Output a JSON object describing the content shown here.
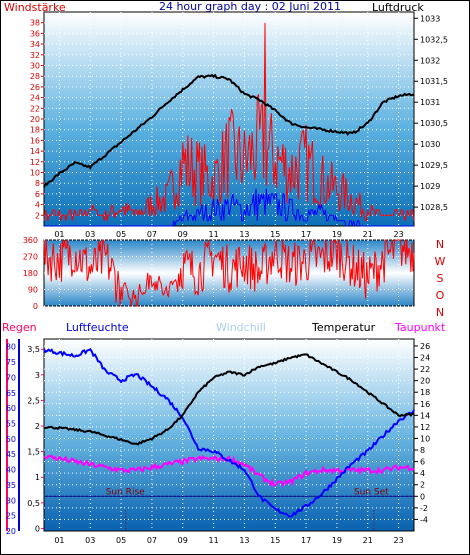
{
  "header": {
    "left": "Windstärke",
    "title": "24 hour graph day : 02 Juni 2011",
    "right": "Luftdruck"
  },
  "colors": {
    "wind": "#ff0000",
    "gust": "#0000ff",
    "pressure": "#000000",
    "temperature": "#000000",
    "humidity": "#0000ff",
    "dewpoint": "#ff00ff",
    "rain": "#ff0066",
    "windchill": "#aaccee",
    "sun": "#000080"
  },
  "wind_dir_letters": [
    "N",
    "W",
    "S",
    "O",
    "N"
  ],
  "bottom_legend": {
    "regen": "Regen",
    "luftfeuchte": "Luftfeuchte",
    "windchill": "Windchill",
    "temperatur": "Temperatur",
    "taupunkt": "Taupunkt"
  },
  "annotations": {
    "sun_rise": "Sun Rise",
    "sun_set": "Sun Set"
  },
  "chart_data": [
    {
      "type": "line",
      "name": "wind_pressure",
      "x_ticks": [
        "01",
        "03",
        "05",
        "07",
        "09",
        "11",
        "13",
        "15",
        "17",
        "19",
        "21",
        "23"
      ],
      "x_range_hours": [
        0,
        24
      ],
      "y_left": {
        "ticks": [
          2,
          4,
          6,
          8,
          10,
          12,
          14,
          16,
          18,
          20,
          22,
          24,
          26,
          28,
          30,
          32,
          34,
          36,
          38
        ],
        "range": [
          0,
          40
        ]
      },
      "y_right": {
        "ticks": [
          "1028,5",
          "1029",
          "1029,5",
          "1030",
          "1030,5",
          "1031",
          "1031,5",
          "1032",
          "1032,5",
          "1033"
        ],
        "range": [
          1028.05,
          1033.15
        ]
      },
      "pressure": {
        "hours": [
          0,
          1,
          2,
          3,
          4,
          5,
          6,
          7,
          8,
          9,
          10,
          11,
          12,
          13,
          14,
          15,
          16,
          17,
          18,
          19,
          20,
          21,
          22,
          23,
          24
        ],
        "values": [
          1029.0,
          1029.3,
          1029.55,
          1029.45,
          1029.75,
          1030.05,
          1030.35,
          1030.65,
          1031.0,
          1031.3,
          1031.6,
          1031.62,
          1031.55,
          1031.2,
          1031.05,
          1030.8,
          1030.5,
          1030.4,
          1030.35,
          1030.3,
          1030.25,
          1030.5,
          1031.0,
          1031.15,
          1031.2
        ]
      },
      "wind": {
        "hours": [
          0,
          1,
          2,
          3,
          4,
          5,
          6,
          7,
          8,
          9,
          10,
          11,
          12,
          13,
          14,
          15,
          16,
          17,
          18,
          19,
          20,
          21,
          22,
          23,
          24
        ],
        "values": [
          2,
          2,
          2,
          3,
          2,
          4,
          2,
          5,
          6,
          14,
          12,
          10,
          16,
          14,
          18,
          15,
          12,
          14,
          10,
          8,
          6,
          3,
          2,
          2,
          2
        ]
      },
      "gust": {
        "hours": [
          0,
          1,
          2,
          3,
          4,
          5,
          6,
          7,
          8,
          9,
          10,
          11,
          12,
          13,
          14,
          15,
          16,
          17,
          18,
          19,
          20,
          21,
          22,
          23,
          24
        ],
        "values": [
          0,
          0,
          0,
          0,
          0,
          0,
          0,
          0,
          0,
          2,
          3,
          4,
          5,
          4,
          6,
          5,
          4,
          3,
          3,
          2,
          1,
          0,
          0,
          0,
          0
        ]
      }
    },
    {
      "type": "line",
      "name": "wind_direction",
      "y_ticks": [
        0,
        90,
        180,
        270,
        360
      ],
      "range": [
        0,
        360
      ],
      "hours": [
        0,
        1,
        2,
        3,
        4,
        5,
        6,
        7,
        8,
        9,
        10,
        11,
        12,
        13,
        14,
        15,
        16,
        17,
        18,
        19,
        20,
        21,
        22,
        23,
        24
      ],
      "values": [
        270,
        250,
        300,
        200,
        260,
        90,
        40,
        160,
        60,
        220,
        180,
        280,
        200,
        240,
        180,
        300,
        220,
        250,
        260,
        300,
        220,
        150,
        250,
        330,
        300
      ]
    },
    {
      "type": "line",
      "name": "rain_humidity_temperature",
      "x_ticks": [
        "01",
        "03",
        "05",
        "07",
        "09",
        "11",
        "13",
        "15",
        "17",
        "19",
        "21",
        "23"
      ],
      "regen_axis": {
        "ticks": [
          0,
          0.5,
          1,
          1.5,
          2,
          2.5,
          3,
          3.5
        ],
        "labels": [
          "0",
          "0,5",
          "1",
          "1,5",
          "2",
          "2,5",
          "3",
          "3,5"
        ],
        "range": [
          -0.05,
          3.7
        ]
      },
      "humidity_axis": {
        "ticks": [
          20,
          25,
          30,
          35,
          40,
          45,
          50,
          55,
          60,
          65,
          70,
          75,
          80
        ],
        "range": [
          20,
          82.5
        ]
      },
      "temp_axis": {
        "ticks": [
          -4,
          -2,
          0,
          2,
          4,
          6,
          8,
          10,
          12,
          14,
          16,
          18,
          20,
          22,
          24,
          26
        ],
        "range": [
          -6,
          27.2
        ]
      },
      "temperature": {
        "hours": [
          0,
          1,
          2,
          3,
          4,
          5,
          6,
          7,
          8,
          9,
          10,
          11,
          12,
          13,
          14,
          15,
          16,
          17,
          18,
          19,
          20,
          21,
          22,
          23,
          24
        ],
        "values": [
          12.0,
          11.8,
          11.5,
          11.2,
          10.5,
          9.8,
          9.0,
          10.0,
          11.5,
          14.0,
          18.0,
          20.5,
          21.5,
          21.0,
          22.5,
          23.0,
          24.0,
          24.5,
          23.0,
          21.5,
          20.0,
          18.0,
          16.0,
          14.0,
          14.2
        ]
      },
      "humidity": {
        "hours": [
          0,
          1,
          2,
          3,
          4,
          5,
          6,
          7,
          8,
          9,
          10,
          11,
          12,
          13,
          14,
          15,
          16,
          17,
          18,
          19,
          20,
          21,
          22,
          23,
          24
        ],
        "values": [
          79,
          78,
          77,
          79,
          72,
          69,
          71,
          67,
          63,
          57,
          47,
          46,
          43,
          40,
          31,
          27,
          25,
          28,
          32,
          37,
          42,
          46,
          51,
          56,
          59
        ]
      },
      "dewpoint": {
        "hours": [
          0,
          1,
          2,
          3,
          4,
          5,
          6,
          7,
          8,
          9,
          10,
          11,
          12,
          13,
          14,
          15,
          16,
          17,
          18,
          19,
          20,
          21,
          22,
          23,
          24
        ],
        "values": [
          7.0,
          6.5,
          6.0,
          5.5,
          5.0,
          4.5,
          4.5,
          5.0,
          5.5,
          6.0,
          6.5,
          6.5,
          6.5,
          5.5,
          3.5,
          2.0,
          2.5,
          4.0,
          4.5,
          4.5,
          4.5,
          4.5,
          4.5,
          5.0,
          5.0
        ]
      },
      "rain": [
        0
      ],
      "sun_rise_hour": 5.3,
      "sun_set_hour": 21.4
    }
  ]
}
